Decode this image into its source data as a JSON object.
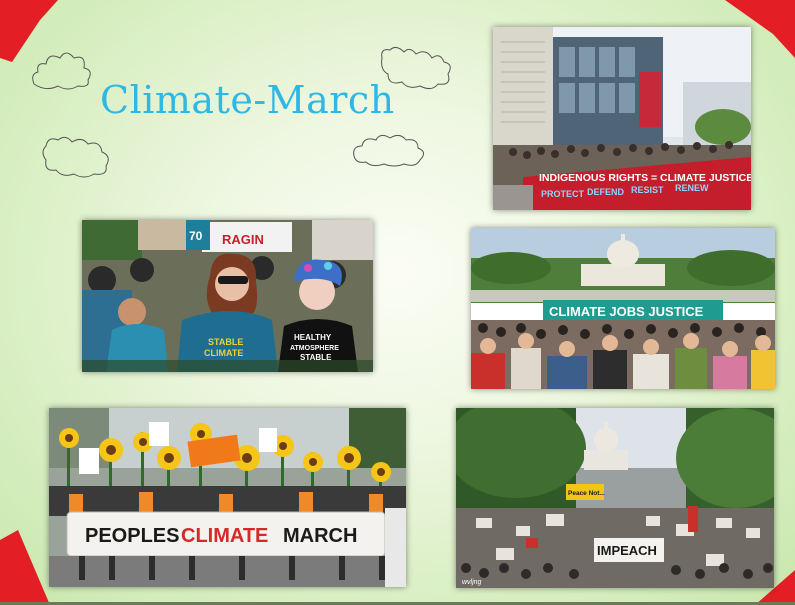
{
  "slide": {
    "title": "Climate-March",
    "colors": {
      "title": "#2fb8e6",
      "corner": "#e31e24",
      "background": "#dcefc8"
    }
  },
  "photos": {
    "indigenous": {
      "banner_line1": "INDIGENOUS RIGHTS = CLIMATE JUSTICE",
      "banner_words": [
        "PROTECT",
        "DEFEND",
        "RESIST",
        "RENEW"
      ]
    },
    "marchers": {
      "sign_top": "RAGIN",
      "sign_side": "70",
      "shirt_left": [
        "STABLE",
        "CLIMATE"
      ],
      "shirt_right": [
        "HEALTHY",
        "ATMOSPHERE",
        "STABLE"
      ]
    },
    "capitol_crowd": {
      "banner": "CLIMATE JOBS JUSTICE"
    },
    "peoples_march": {
      "banner": [
        "PEOPLES",
        "CLIMATE",
        "MARCH"
      ]
    },
    "avenue": {
      "sign_yellow": "Peace Not...",
      "sign_impeach": "IMPEACH",
      "watermark": "wvljng"
    }
  }
}
